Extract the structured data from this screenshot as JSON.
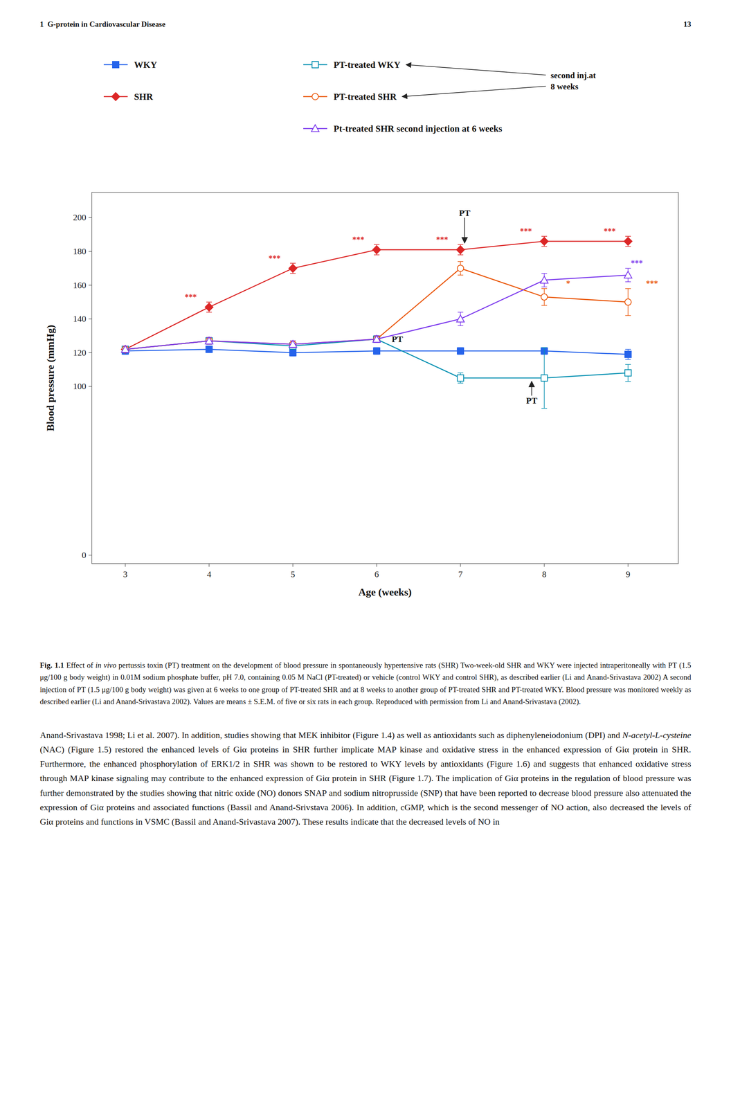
{
  "page": {
    "header_left": "1  G-protein in Cardiovascular Disease",
    "header_right": "13",
    "caption": [
      "Fig. 1.1",
      " Effect of ",
      "in vivo",
      " pertussis toxin (PT) treatment on the development of blood pressure in spontaneously hypertensive rats (SHR) Two-week-old SHR and WKY were injected intraperitoneally with PT (1.5 μg/100 g body weight) in 0.01M sodium phosphate buffer, pH 7.0, containing 0.05 M NaCl (PT-treated) or vehicle (control WKY and control SHR), as described earlier (Li and Anand-Srivastava 2002) A second injection of PT (1.5 μg/100 g body weight) was given at 6 weeks to one group of PT-treated SHR and at 8 weeks to another group of PT-treated SHR and PT-treated WKY. Blood pressure was monitored weekly as described earlier (Li and Anand-Srivastava 2002). Values are means ± S.E.M. of five or six rats in each group. Reproduced with permission from Li and Anand-Srivastava (2002)."
    ],
    "body": [
      "Anand-Srivastava 1998; Li et al. 2007). In addition, studies showing that MEK inhibitor (Figure 1.4) as well as antioxidants such as diphenyleneiodonium (DPI) and ",
      "N-acetyl-L-cysteine",
      " (NAC) (Figure 1.5) restored the enhanced levels of Giα proteins in SHR further implicate MAP kinase and oxidative stress in the enhanced expression of Giα protein in SHR. Furthermore, the enhanced phosphorylation of ERK1/2 in SHR was shown to be restored to WKY levels by antioxidants (Figure 1.6) and suggests that enhanced oxidative stress through MAP kinase signaling may contribute to the enhanced expression of Giα protein in SHR (Figure 1.7). The implication of Giα proteins in the regulation of blood pressure was further demonstrated by the studies showing that nitric oxide (NO) donors SNAP and sodium nitroprusside (SNP) that have been reported to decrease blood pressure also attenuated the expression of Giα proteins and associated functions (Bassil and Anand-Srivstava 2006). In addition, cGMP, which is the second messenger of NO action, also decreased the levels of Giα proteins and functions in VSMC (Bassil and Anand-Srivastava 2007). These results indicate that the decreased levels of NO in"
    ]
  },
  "chart_data": {
    "type": "line",
    "x_label": "Age (weeks)",
    "y_label": "Blood pressure (mmHg)",
    "x": [
      3,
      4,
      5,
      6,
      7,
      8,
      9
    ],
    "xlim": [
      2.6,
      9.6
    ],
    "ylim": [
      -5,
      215
    ],
    "xticks": [
      3,
      4,
      5,
      6,
      7,
      8,
      9
    ],
    "yticks": [
      0,
      100,
      120,
      140,
      160,
      180,
      200
    ],
    "grid": false,
    "legend": "top",
    "series": [
      {
        "name": "WKY",
        "color": "#2563eb",
        "marker": "square",
        "values": [
          121,
          122,
          120,
          121,
          121,
          121,
          119
        ],
        "errors": [
          2,
          2,
          2,
          2,
          2,
          2,
          3
        ]
      },
      {
        "name": "SHR",
        "color": "#dc2626",
        "marker": "diamond",
        "values": [
          122,
          147,
          170,
          181,
          181,
          186,
          186
        ],
        "errors": [
          2,
          3,
          3,
          3,
          3,
          3,
          3
        ],
        "significance": [
          null,
          "***",
          "***",
          "***",
          "***",
          "***",
          "***"
        ]
      },
      {
        "name": "PT-treated WKY",
        "color": "#0891b2",
        "marker": "square-open",
        "values": [
          122,
          127,
          124,
          128,
          105,
          105,
          108
        ],
        "errors": [
          2,
          2,
          2,
          2,
          3,
          18,
          5
        ]
      },
      {
        "name": "PT-treated SHR",
        "color": "#ea580c",
        "marker": "circle-open",
        "values": [
          122,
          127,
          125,
          128,
          170,
          153,
          150
        ],
        "errors": [
          2,
          2,
          2,
          2,
          4,
          5,
          8
        ],
        "significance": [
          null,
          null,
          null,
          null,
          null,
          "*",
          "***"
        ]
      },
      {
        "name": "Pt-treated SHR second injection at 6 weeks",
        "color": "#7c3aed",
        "marker": "triangle-open",
        "values": [
          122,
          127,
          125,
          128,
          140,
          163,
          166
        ],
        "errors": [
          2,
          2,
          2,
          2,
          4,
          4,
          4
        ],
        "significance": [
          null,
          null,
          null,
          null,
          null,
          null,
          "***"
        ]
      }
    ],
    "annotations": [
      {
        "text": "PT",
        "x": 7.05,
        "y": 185,
        "text_y": 200
      },
      {
        "text": "PT",
        "x": 7.85,
        "y": 103,
        "text_y": 95
      },
      {
        "text": "PT",
        "x": 6.18,
        "y": 128
      }
    ],
    "legend_note": [
      "second inj.at",
      "8 weeks"
    ]
  }
}
